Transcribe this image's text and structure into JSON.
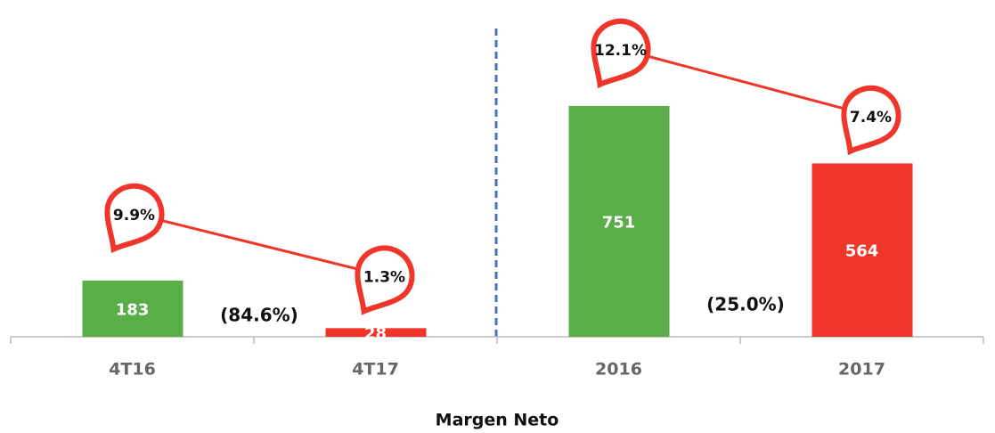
{
  "chart_data": {
    "type": "bar",
    "x_label": "Margen Neto",
    "categories": [
      "4T16",
      "4T17",
      "2016",
      "2017"
    ],
    "values": [
      183,
      28,
      751,
      564
    ],
    "colors": [
      "#5aae47",
      "#f0352b",
      "#5aae47",
      "#f0352b"
    ],
    "margins": [
      9.9,
      1.3,
      12.1,
      7.4
    ],
    "margin_labels": [
      "9.9%",
      "1.3%",
      "12.1%",
      "7.4%"
    ],
    "annotations": [
      "(84.6%)",
      "(25.0%)"
    ]
  }
}
